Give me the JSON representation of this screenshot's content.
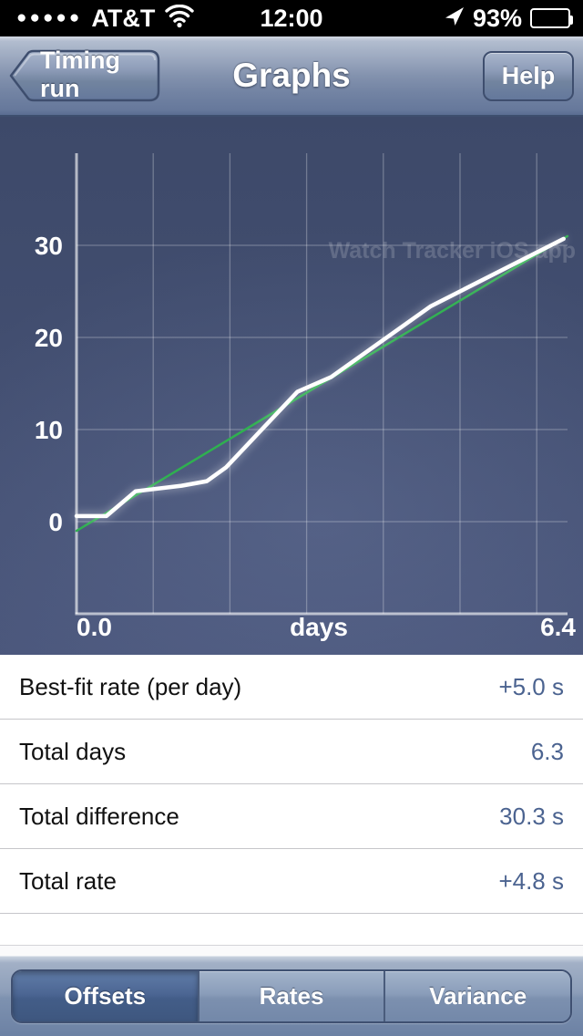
{
  "status_bar": {
    "signal_dots": "●●●●●",
    "carrier": "AT&T",
    "time": "12:00",
    "battery_percent": "93%"
  },
  "nav_bar": {
    "back_label": "Timing run",
    "title": "Graphs",
    "help_label": "Help"
  },
  "chart_data": {
    "type": "line",
    "watermark": "Watch Tracker iOS app",
    "xlabel": "days",
    "x_tick_labels": {
      "left": "0.0",
      "center": "days",
      "right": "6.4"
    },
    "xlim": [
      0,
      6.4
    ],
    "ylim": [
      -12.5,
      40
    ],
    "y_ticks": [
      0,
      10,
      20,
      30
    ],
    "x_gridline_days": [
      1,
      2,
      3,
      4,
      5,
      6
    ],
    "grid": true,
    "series": [
      {
        "name": "best_fit_line",
        "color": "#2fb050",
        "points": [
          [
            0.0,
            -1.0
          ],
          [
            6.4,
            31.0
          ]
        ]
      },
      {
        "name": "offset_line",
        "color": "#ffffff",
        "points": [
          [
            0.0,
            0.6
          ],
          [
            0.39,
            0.6
          ],
          [
            0.77,
            3.3
          ],
          [
            1.37,
            3.9
          ],
          [
            1.7,
            4.4
          ],
          [
            1.95,
            5.9
          ],
          [
            2.88,
            14.1
          ],
          [
            3.32,
            15.7
          ],
          [
            4.62,
            23.4
          ],
          [
            6.35,
            30.7
          ]
        ]
      }
    ]
  },
  "stats_table": {
    "rows": [
      {
        "label": "Best-fit rate (per day)",
        "value": "+5.0 s"
      },
      {
        "label": "Total days",
        "value": "6.3"
      },
      {
        "label": "Total difference",
        "value": "30.3 s"
      },
      {
        "label": "Total rate",
        "value": "+4.8 s"
      }
    ]
  },
  "tab_bar": {
    "segments": [
      {
        "label": "Offsets",
        "selected": true
      },
      {
        "label": "Rates",
        "selected": false
      },
      {
        "label": "Variance",
        "selected": false
      }
    ]
  },
  "colors": {
    "fit_line": "#2fb050",
    "offset_line": "#ffffff",
    "stat_value": "#4b6390",
    "chart_bg_top": "#3d4969",
    "chart_bg_bottom": "#4a567b"
  }
}
